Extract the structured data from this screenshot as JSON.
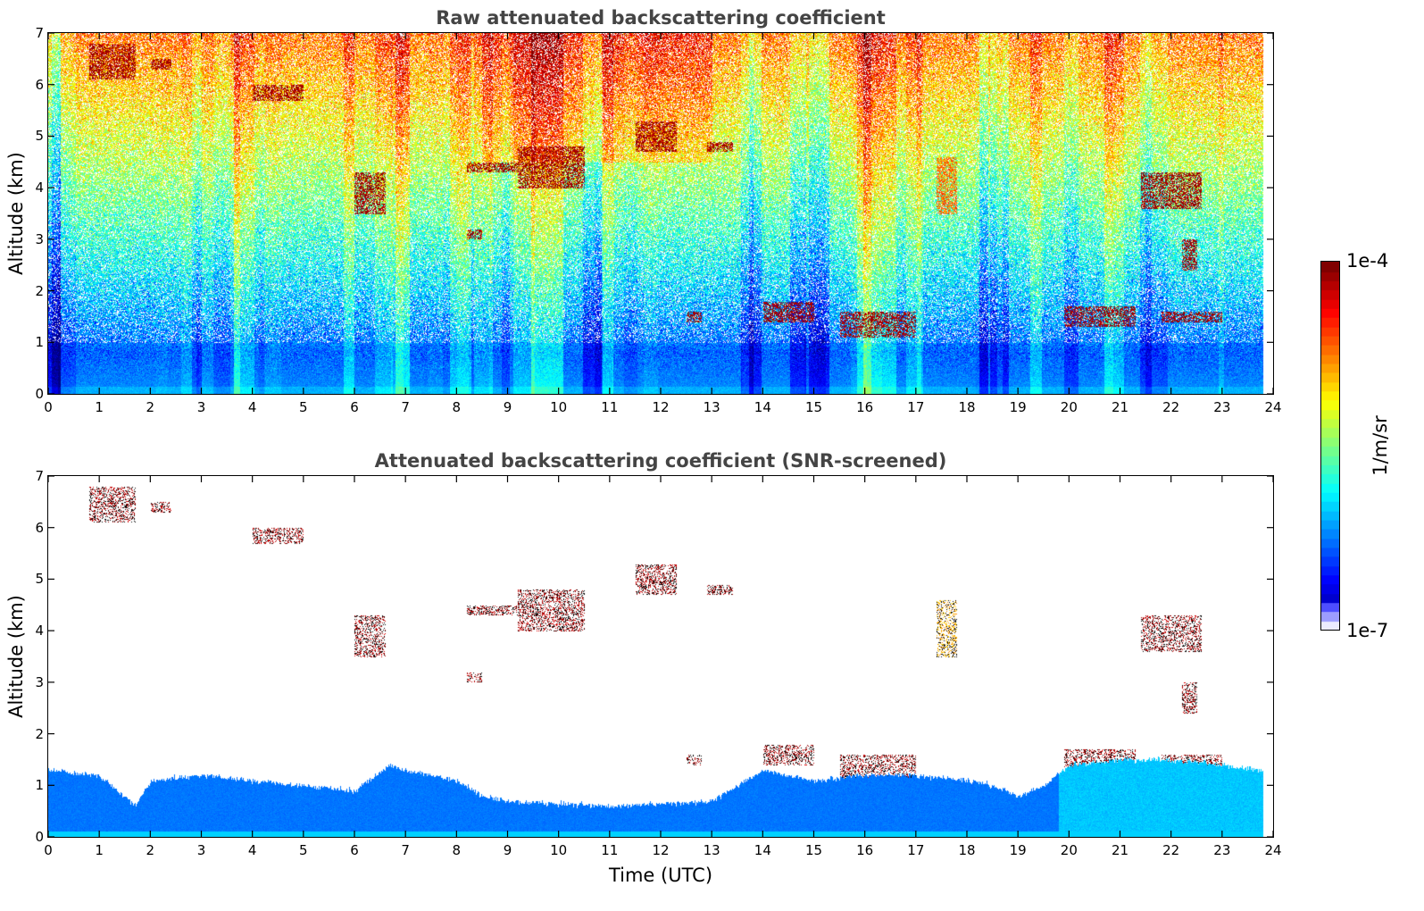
{
  "chart_data": [
    {
      "type": "heatmap",
      "title": "Raw attenuated backscattering coefficient",
      "xlabel": "",
      "ylabel": "Altitude (km)",
      "xlim": [
        0,
        24
      ],
      "ylim": [
        0,
        7
      ],
      "xticks": [
        "0",
        "1",
        "2",
        "3",
        "4",
        "5",
        "6",
        "7",
        "8",
        "9",
        "10",
        "11",
        "12",
        "13",
        "14",
        "15",
        "16",
        "17",
        "18",
        "19",
        "20",
        "21",
        "22",
        "23",
        "24"
      ],
      "yticks": [
        "0",
        "1",
        "2",
        "3",
        "4",
        "5",
        "6",
        "7"
      ],
      "data_end_hour": 23.8,
      "layers": [
        {
          "x": [
            0.8,
            1.7
          ],
          "y": [
            6.1,
            6.8
          ],
          "level": "high"
        },
        {
          "x": [
            2.0,
            2.4
          ],
          "y": [
            6.3,
            6.5
          ],
          "level": "high"
        },
        {
          "x": [
            4.0,
            5.0
          ],
          "y": [
            5.7,
            6.0
          ],
          "level": "high"
        },
        {
          "x": [
            6.0,
            6.6
          ],
          "y": [
            3.5,
            4.3
          ],
          "level": "high"
        },
        {
          "x": [
            8.2,
            9.2
          ],
          "y": [
            4.3,
            4.5
          ],
          "level": "high"
        },
        {
          "x": [
            9.2,
            10.5
          ],
          "y": [
            4.0,
            4.8
          ],
          "level": "high"
        },
        {
          "x": [
            11.5,
            12.3
          ],
          "y": [
            4.7,
            5.3
          ],
          "level": "high"
        },
        {
          "x": [
            12.9,
            13.4
          ],
          "y": [
            4.7,
            4.9
          ],
          "level": "high"
        },
        {
          "x": [
            8.2,
            8.5
          ],
          "y": [
            3.0,
            3.2
          ],
          "level": "high"
        },
        {
          "x": [
            12.5,
            12.8
          ],
          "y": [
            1.4,
            1.6
          ],
          "level": "high"
        },
        {
          "x": [
            14.0,
            15.0
          ],
          "y": [
            1.4,
            1.8
          ],
          "level": "high"
        },
        {
          "x": [
            15.5,
            17.0
          ],
          "y": [
            1.1,
            1.6
          ],
          "level": "high"
        },
        {
          "x": [
            19.9,
            21.3
          ],
          "y": [
            1.3,
            1.7
          ],
          "level": "high"
        },
        {
          "x": [
            21.8,
            23.0
          ],
          "y": [
            1.4,
            1.6
          ],
          "level": "high"
        },
        {
          "x": [
            21.4,
            22.6
          ],
          "y": [
            3.6,
            4.3
          ],
          "level": "high"
        },
        {
          "x": [
            17.4,
            17.8
          ],
          "y": [
            3.5,
            4.6
          ],
          "level": "mid"
        },
        {
          "x": [
            22.2,
            22.5
          ],
          "y": [
            2.4,
            3.0
          ],
          "level": "high"
        }
      ]
    },
    {
      "type": "heatmap",
      "title": "Attenuated backscattering coefficient (SNR-screened)",
      "xlabel": "Time (UTC)",
      "ylabel": "Altitude (km)",
      "xlim": [
        0,
        24
      ],
      "ylim": [
        0,
        7
      ],
      "xticks": [
        "0",
        "1",
        "2",
        "3",
        "4",
        "5",
        "6",
        "7",
        "8",
        "9",
        "10",
        "11",
        "12",
        "13",
        "14",
        "15",
        "16",
        "17",
        "18",
        "19",
        "20",
        "21",
        "22",
        "23",
        "24"
      ],
      "yticks": [
        "0",
        "1",
        "2",
        "3",
        "4",
        "5",
        "6",
        "7"
      ],
      "data_end_hour": 23.8,
      "boundary_layer_top_km": [
        [
          0,
          1.3
        ],
        [
          1,
          1.2
        ],
        [
          1.7,
          0.6
        ],
        [
          2,
          1.1
        ],
        [
          3,
          1.2
        ],
        [
          4,
          1.1
        ],
        [
          5,
          1.0
        ],
        [
          6,
          0.9
        ],
        [
          6.7,
          1.4
        ],
        [
          7,
          1.3
        ],
        [
          8,
          1.1
        ],
        [
          8.5,
          0.8
        ],
        [
          9,
          0.7
        ],
        [
          10,
          0.65
        ],
        [
          11,
          0.6
        ],
        [
          12,
          0.65
        ],
        [
          13,
          0.7
        ],
        [
          14,
          1.3
        ],
        [
          15,
          1.1
        ],
        [
          16,
          1.2
        ],
        [
          17,
          1.2
        ],
        [
          18,
          1.1
        ],
        [
          18.5,
          1.0
        ],
        [
          19,
          0.8
        ],
        [
          19.5,
          1.0
        ],
        [
          20,
          1.4
        ],
        [
          21,
          1.5
        ],
        [
          22,
          1.5
        ],
        [
          23,
          1.4
        ],
        [
          23.8,
          1.3
        ]
      ]
    }
  ],
  "colorbar": {
    "label": "1/m/sr",
    "max_label": "1e-4",
    "min_label": "1e-7",
    "scale": "log",
    "range": [
      1e-07,
      0.0001
    ],
    "colormap": "jet"
  }
}
